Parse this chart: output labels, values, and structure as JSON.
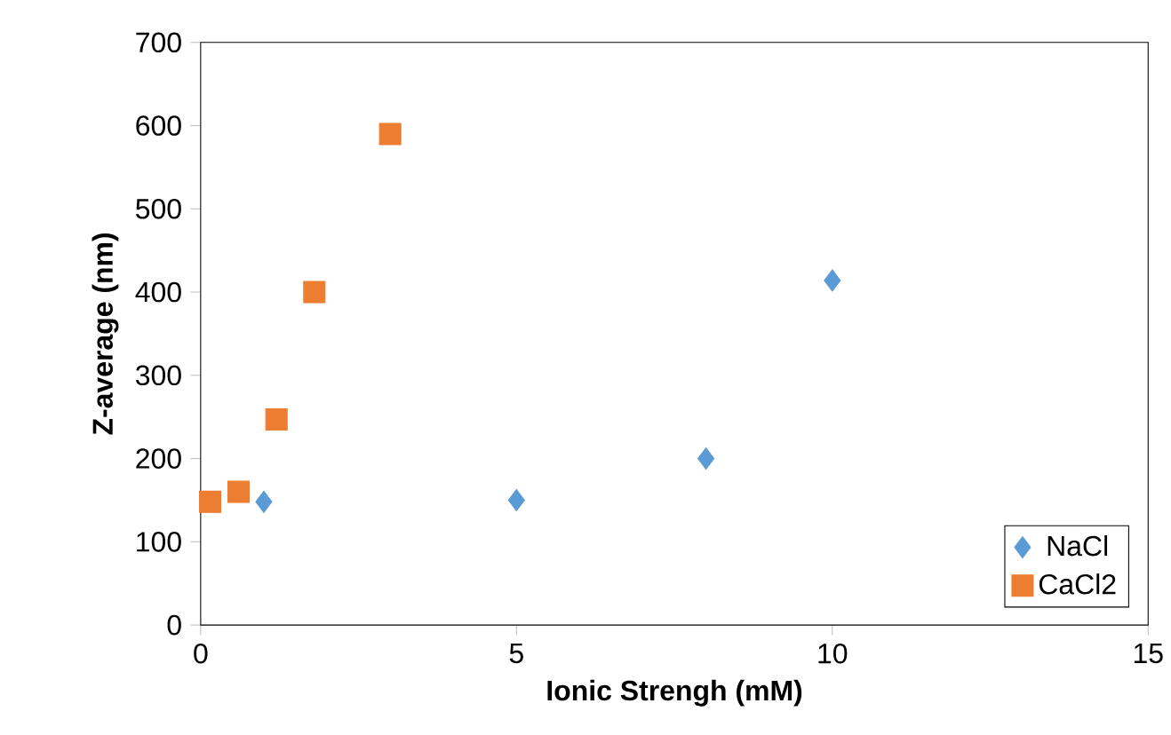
{
  "chart_data": {
    "type": "scatter",
    "xlabel": "Ionic Strengh (mM)",
    "ylabel": "Z-average (nm)",
    "xlim": [
      0,
      15
    ],
    "xticks": [
      0,
      5,
      10,
      15
    ],
    "ylim": [
      0,
      700
    ],
    "yticks": [
      0,
      100,
      200,
      300,
      400,
      500,
      600,
      700
    ],
    "grid": false,
    "legend": "bottom right",
    "series": [
      {
        "name": "NaCl",
        "color": "#5b9bd5",
        "marker": "diamond",
        "x": [
          1,
          5,
          8,
          10
        ],
        "values": [
          148,
          150,
          200,
          414
        ]
      },
      {
        "name": "CaCl2",
        "color": "#ed7d31",
        "marker": "square",
        "x": [
          0.15,
          0.6,
          1.2,
          1.8,
          3
        ],
        "values": [
          148,
          160,
          247,
          400,
          590
        ]
      }
    ]
  }
}
